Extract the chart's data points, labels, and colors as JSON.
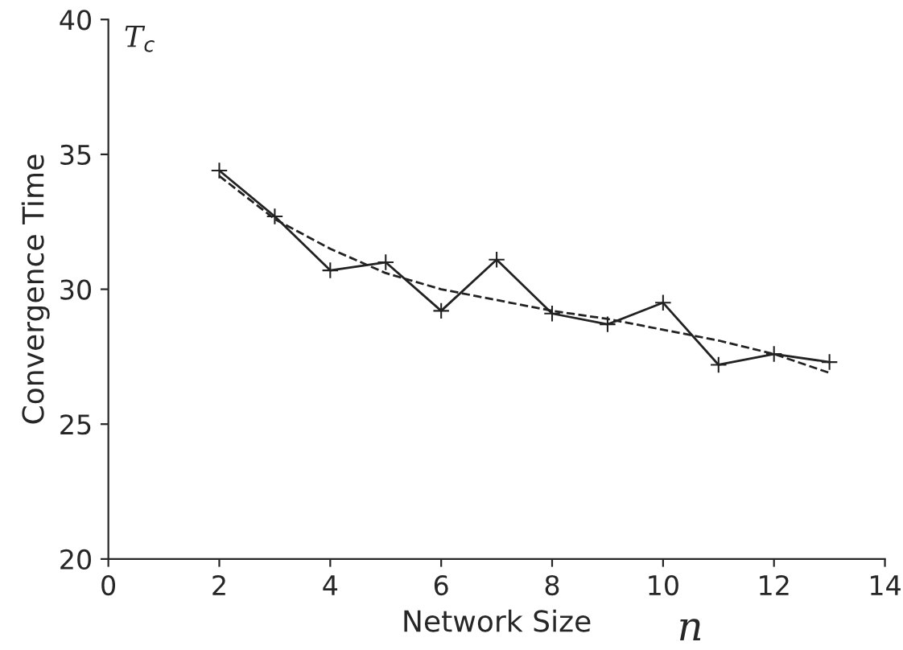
{
  "chart_data": {
    "type": "line",
    "xlabel": "Network Size",
    "ylabel": "Convergence Time",
    "annotations": [
      "T$_{c}$",
      "n"
    ],
    "series": [
      {
        "color": "#222222",
        "marker": "cross",
        "line_style": "solid",
        "x": [
          2,
          3,
          4,
          5,
          6,
          7,
          8,
          9,
          10,
          11,
          12,
          13
        ],
        "values": [
          34.4,
          32.7,
          30.7,
          31.0,
          29.2,
          31.1,
          29.1,
          28.7,
          29.5,
          27.2,
          27.6,
          27.3
        ]
      },
      {
        "color": "#222222",
        "marker": "none",
        "line_style": "dashed",
        "x": [
          2,
          3,
          4,
          5,
          6,
          7,
          8,
          9,
          10,
          11,
          12,
          13
        ],
        "values": [
          34.2,
          32.6,
          31.5,
          30.6,
          30.0,
          29.6,
          29.2,
          28.9,
          28.5,
          28.1,
          27.6,
          26.9
        ]
      }
    ],
    "xlim": [
      0,
      14
    ],
    "xticks": [
      0,
      2,
      4,
      6,
      8,
      10,
      12,
      14
    ],
    "ylim": [
      20,
      40
    ],
    "yticks": [
      20,
      25,
      30,
      35,
      40
    ],
    "grid": false
  }
}
